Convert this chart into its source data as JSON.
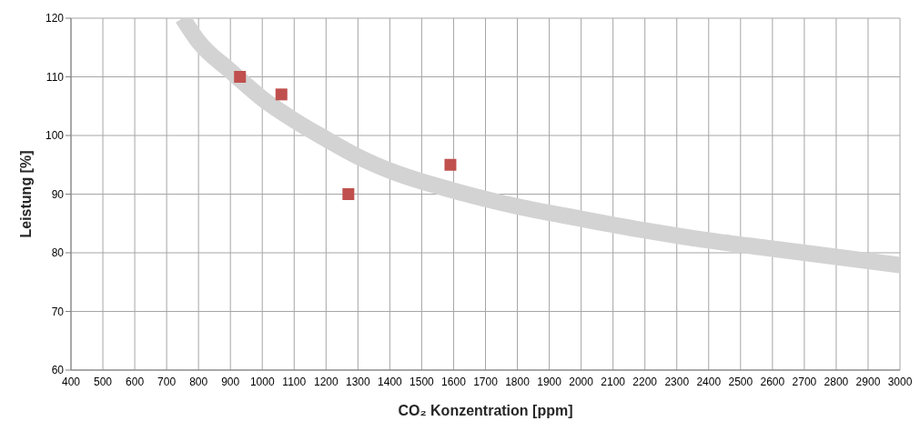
{
  "chart_data": {
    "type": "scatter",
    "xlabel": "CO₂ Konzentration [ppm]",
    "ylabel": "Leistung [%]",
    "xlim": [
      400,
      3000
    ],
    "xticks": [
      400,
      500,
      600,
      700,
      800,
      900,
      1000,
      1100,
      1200,
      1300,
      1400,
      1500,
      1600,
      1700,
      1800,
      1900,
      2000,
      2100,
      2200,
      2300,
      2400,
      2500,
      2600,
      2700,
      2800,
      2900,
      3000
    ],
    "ylim": [
      60,
      120
    ],
    "yticks": [
      60,
      70,
      80,
      90,
      100,
      110,
      120
    ],
    "grid": true,
    "series": [
      {
        "type": "line",
        "color": "#d3d3d3",
        "x": [
          750,
          800,
          900,
          1000,
          1100,
          1200,
          1300,
          1400,
          1600,
          1800,
          2000,
          2200,
          2400,
          2600,
          2800,
          3000
        ],
        "values": [
          120,
          116,
          111,
          106.3,
          102.6,
          99.4,
          96.4,
          94,
          90.6,
          87.9,
          85.8,
          83.8,
          82.1,
          80.7,
          79.3,
          77.9
        ]
      },
      {
        "marker": "square",
        "color": "#c0504d",
        "x": [
          930,
          1060,
          1270,
          1590
        ],
        "values": [
          110,
          107,
          90,
          95
        ]
      }
    ]
  }
}
